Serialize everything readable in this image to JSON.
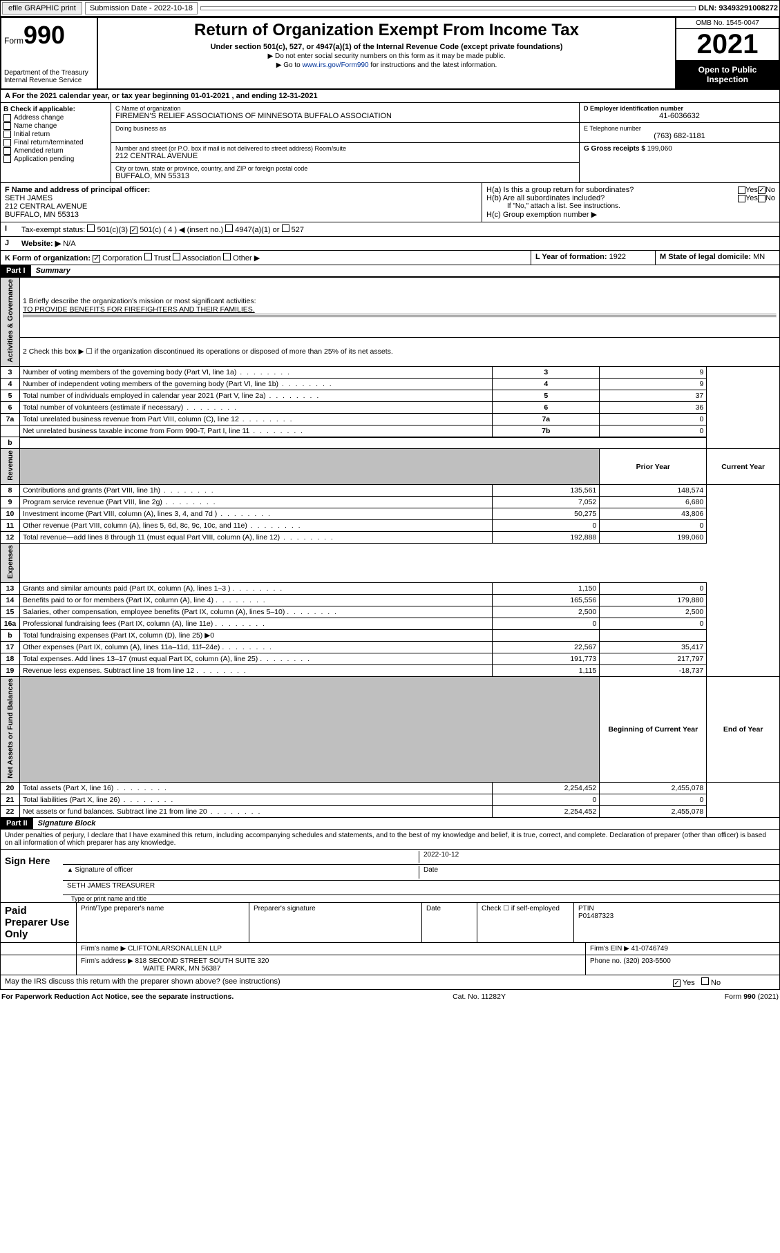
{
  "top": {
    "efile": "efile GRAPHIC print",
    "sub_lbl": "Submission Date - 2022-10-18",
    "dln": "DLN: 93493291008272"
  },
  "header": {
    "form_prefix": "Form",
    "form_num": "990",
    "dept": "Department of the Treasury\nInternal Revenue Service",
    "title": "Return of Organization Exempt From Income Tax",
    "subtitle": "Under section 501(c), 527, or 4947(a)(1) of the Internal Revenue Code (except private foundations)",
    "note1": "▶ Do not enter social security numbers on this form as it may be made public.",
    "note2_pre": "▶ Go to ",
    "note2_link": "www.irs.gov/Form990",
    "note2_post": " for instructions and the latest information.",
    "omb": "OMB No. 1545-0047",
    "year": "2021",
    "inspect": "Open to Public Inspection"
  },
  "A": {
    "line": "A For the 2021 calendar year, or tax year beginning 01-01-2021  , and ending 12-31-2021"
  },
  "B": {
    "hdr": "B Check if applicable:",
    "opts": [
      "Address change",
      "Name change",
      "Initial return",
      "Final return/terminated",
      "Amended return",
      "Application pending"
    ]
  },
  "C": {
    "name_lbl": "C Name of organization",
    "name": "FIREMEN'S RELIEF ASSOCIATIONS OF MINNESOTA BUFFALO ASSOCIATION",
    "dba_lbl": "Doing business as",
    "addr_lbl": "Number and street (or P.O. box if mail is not delivered to street address)   Room/suite",
    "addr": "212 CENTRAL AVENUE",
    "city_lbl": "City or town, state or province, country, and ZIP or foreign postal code",
    "city": "BUFFALO, MN  55313"
  },
  "D": {
    "lbl": "D Employer identification number",
    "val": "41-6036632"
  },
  "E": {
    "lbl": "E Telephone number",
    "val": "(763) 682-1181"
  },
  "G": {
    "lbl": "G Gross receipts $",
    "val": "199,060"
  },
  "F": {
    "lbl": "F Name and address of principal officer:",
    "name": "SETH JAMES",
    "addr1": "212 CENTRAL AVENUE",
    "addr2": "BUFFALO, MN  55313"
  },
  "H": {
    "a": "H(a) Is this a group return for subordinates?",
    "b": "H(b) Are all subordinates included?",
    "b_note": "If \"No,\" attach a list. See instructions.",
    "c": "H(c) Group exemption number ▶",
    "yes": "Yes",
    "no": "No"
  },
  "I": {
    "lbl": "Tax-exempt status:",
    "c3": "501(c)(3)",
    "c": "501(c) ( 4 ) ◀ (insert no.)",
    "a1": "4947(a)(1) or",
    "527": "527"
  },
  "J": {
    "lbl": "Website: ▶",
    "val": "N/A"
  },
  "K": {
    "lbl": "K Form of organization:",
    "corp": "Corporation",
    "trust": "Trust",
    "assoc": "Association",
    "other": "Other ▶"
  },
  "L": {
    "lbl": "L Year of formation:",
    "val": "1922"
  },
  "M": {
    "lbl": "M State of legal domicile:",
    "val": "MN"
  },
  "part1": {
    "hdr": "Part I",
    "title": "Summary",
    "mission_lbl": "1  Briefly describe the organization's mission or most significant activities:",
    "mission": "TO PROVIDE BENEFITS FOR FIREFIGHTERS AND THEIR FAMILIES.",
    "l2": "2  Check this box ▶ ☐  if the organization discontinued its operations or disposed of more than 25% of its net assets.",
    "rows_gov": [
      {
        "n": "3",
        "d": "Number of voting members of the governing body (Part VI, line 1a)",
        "k": "3",
        "v": "9"
      },
      {
        "n": "4",
        "d": "Number of independent voting members of the governing body (Part VI, line 1b)",
        "k": "4",
        "v": "9"
      },
      {
        "n": "5",
        "d": "Total number of individuals employed in calendar year 2021 (Part V, line 2a)",
        "k": "5",
        "v": "37"
      },
      {
        "n": "6",
        "d": "Total number of volunteers (estimate if necessary)",
        "k": "6",
        "v": "36"
      },
      {
        "n": "7a",
        "d": "Total unrelated business revenue from Part VIII, column (C), line 12",
        "k": "7a",
        "v": "0"
      },
      {
        "n": "",
        "d": "Net unrelated business taxable income from Form 990-T, Part I, line 11",
        "k": "7b",
        "v": "0"
      }
    ],
    "col_prior": "Prior Year",
    "col_curr": "Current Year",
    "rows_rev": [
      {
        "n": "8",
        "d": "Contributions and grants (Part VIII, line 1h)",
        "p": "135,561",
        "c": "148,574"
      },
      {
        "n": "9",
        "d": "Program service revenue (Part VIII, line 2g)",
        "p": "7,052",
        "c": "6,680"
      },
      {
        "n": "10",
        "d": "Investment income (Part VIII, column (A), lines 3, 4, and 7d )",
        "p": "50,275",
        "c": "43,806"
      },
      {
        "n": "11",
        "d": "Other revenue (Part VIII, column (A), lines 5, 6d, 8c, 9c, 10c, and 11e)",
        "p": "0",
        "c": "0"
      },
      {
        "n": "12",
        "d": "Total revenue—add lines 8 through 11 (must equal Part VIII, column (A), line 12)",
        "p": "192,888",
        "c": "199,060"
      }
    ],
    "rows_exp": [
      {
        "n": "13",
        "d": "Grants and similar amounts paid (Part IX, column (A), lines 1–3 )",
        "p": "1,150",
        "c": "0"
      },
      {
        "n": "14",
        "d": "Benefits paid to or for members (Part IX, column (A), line 4)",
        "p": "165,556",
        "c": "179,880"
      },
      {
        "n": "15",
        "d": "Salaries, other compensation, employee benefits (Part IX, column (A), lines 5–10)",
        "p": "2,500",
        "c": "2,500"
      },
      {
        "n": "16a",
        "d": "Professional fundraising fees (Part IX, column (A), line 11e)",
        "p": "0",
        "c": "0"
      },
      {
        "n": "b",
        "d": "Total fundraising expenses (Part IX, column (D), line 25) ▶0",
        "p": "",
        "c": "",
        "shade": true
      },
      {
        "n": "17",
        "d": "Other expenses (Part IX, column (A), lines 11a–11d, 11f–24e)",
        "p": "22,567",
        "c": "35,417"
      },
      {
        "n": "18",
        "d": "Total expenses. Add lines 13–17 (must equal Part IX, column (A), line 25)",
        "p": "191,773",
        "c": "217,797"
      },
      {
        "n": "19",
        "d": "Revenue less expenses. Subtract line 18 from line 12",
        "p": "1,115",
        "c": "-18,737"
      }
    ],
    "col_beg": "Beginning of Current Year",
    "col_end": "End of Year",
    "rows_net": [
      {
        "n": "20",
        "d": "Total assets (Part X, line 16)",
        "p": "2,254,452",
        "c": "2,455,078"
      },
      {
        "n": "21",
        "d": "Total liabilities (Part X, line 26)",
        "p": "0",
        "c": "0"
      },
      {
        "n": "22",
        "d": "Net assets or fund balances. Subtract line 21 from line 20",
        "p": "2,254,452",
        "c": "2,455,078"
      }
    ],
    "tabs": {
      "gov": "Activities & Governance",
      "rev": "Revenue",
      "exp": "Expenses",
      "net": "Net Assets or Fund Balances"
    }
  },
  "part2": {
    "hdr": "Part II",
    "title": "Signature Block",
    "decl": "Under penalties of perjury, I declare that I have examined this return, including accompanying schedules and statements, and to the best of my knowledge and belief, it is true, correct, and complete. Declaration of preparer (other than officer) is based on all information of which preparer has any knowledge.",
    "sign_here": "Sign Here",
    "sig_officer_lbl": "Signature of officer",
    "date_lbl": "Date",
    "date_val": "2022-10-12",
    "name_title": "SETH JAMES  TREASURER",
    "name_title_lbl": "Type or print name and title",
    "paid": "Paid Preparer Use Only",
    "prep_name_lbl": "Print/Type preparer's name",
    "prep_sig_lbl": "Preparer's signature",
    "prep_date_lbl": "Date",
    "prep_check": "Check ☐ if self-employed",
    "ptin_lbl": "PTIN",
    "ptin": "P01487323",
    "firm_name_lbl": "Firm's name  ▶",
    "firm_name": "CLIFTONLARSONALLEN LLP",
    "firm_ein_lbl": "Firm's EIN ▶",
    "firm_ein": "41-0746749",
    "firm_addr_lbl": "Firm's address ▶",
    "firm_addr1": "818 SECOND STREET SOUTH SUITE 320",
    "firm_addr2": "WAITE PARK, MN  56387",
    "phone_lbl": "Phone no.",
    "phone": "(320) 203-5500",
    "discuss": "May the IRS discuss this return with the preparer shown above? (see instructions)"
  },
  "footer": {
    "left": "For Paperwork Reduction Act Notice, see the separate instructions.",
    "mid": "Cat. No. 11282Y",
    "right": "Form 990 (2021)"
  }
}
